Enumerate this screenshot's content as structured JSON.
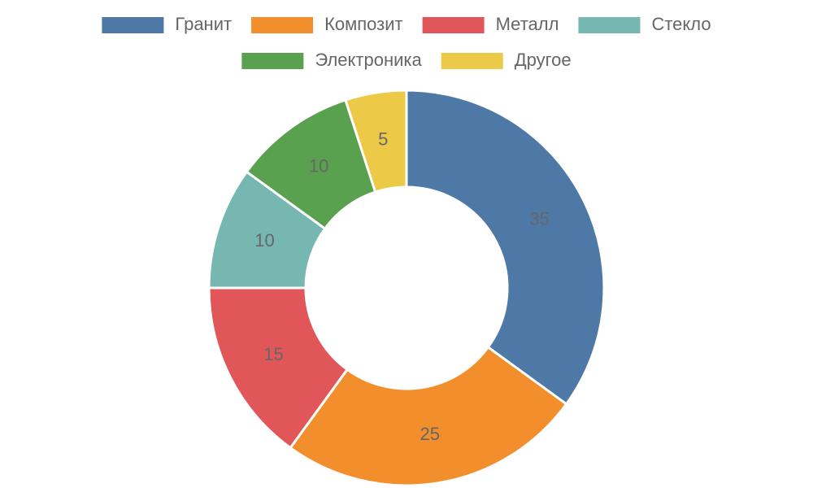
{
  "chart_data": {
    "type": "donut",
    "categories": [
      "Гранит",
      "Композит",
      "Металл",
      "Стекло",
      "Электроника",
      "Другое"
    ],
    "values": [
      35,
      25,
      15,
      10,
      10,
      5
    ],
    "colors": [
      "#4e79a7",
      "#f28e2b",
      "#e15759",
      "#76b7b2",
      "#59a14f",
      "#edc948"
    ],
    "legend": "top"
  }
}
